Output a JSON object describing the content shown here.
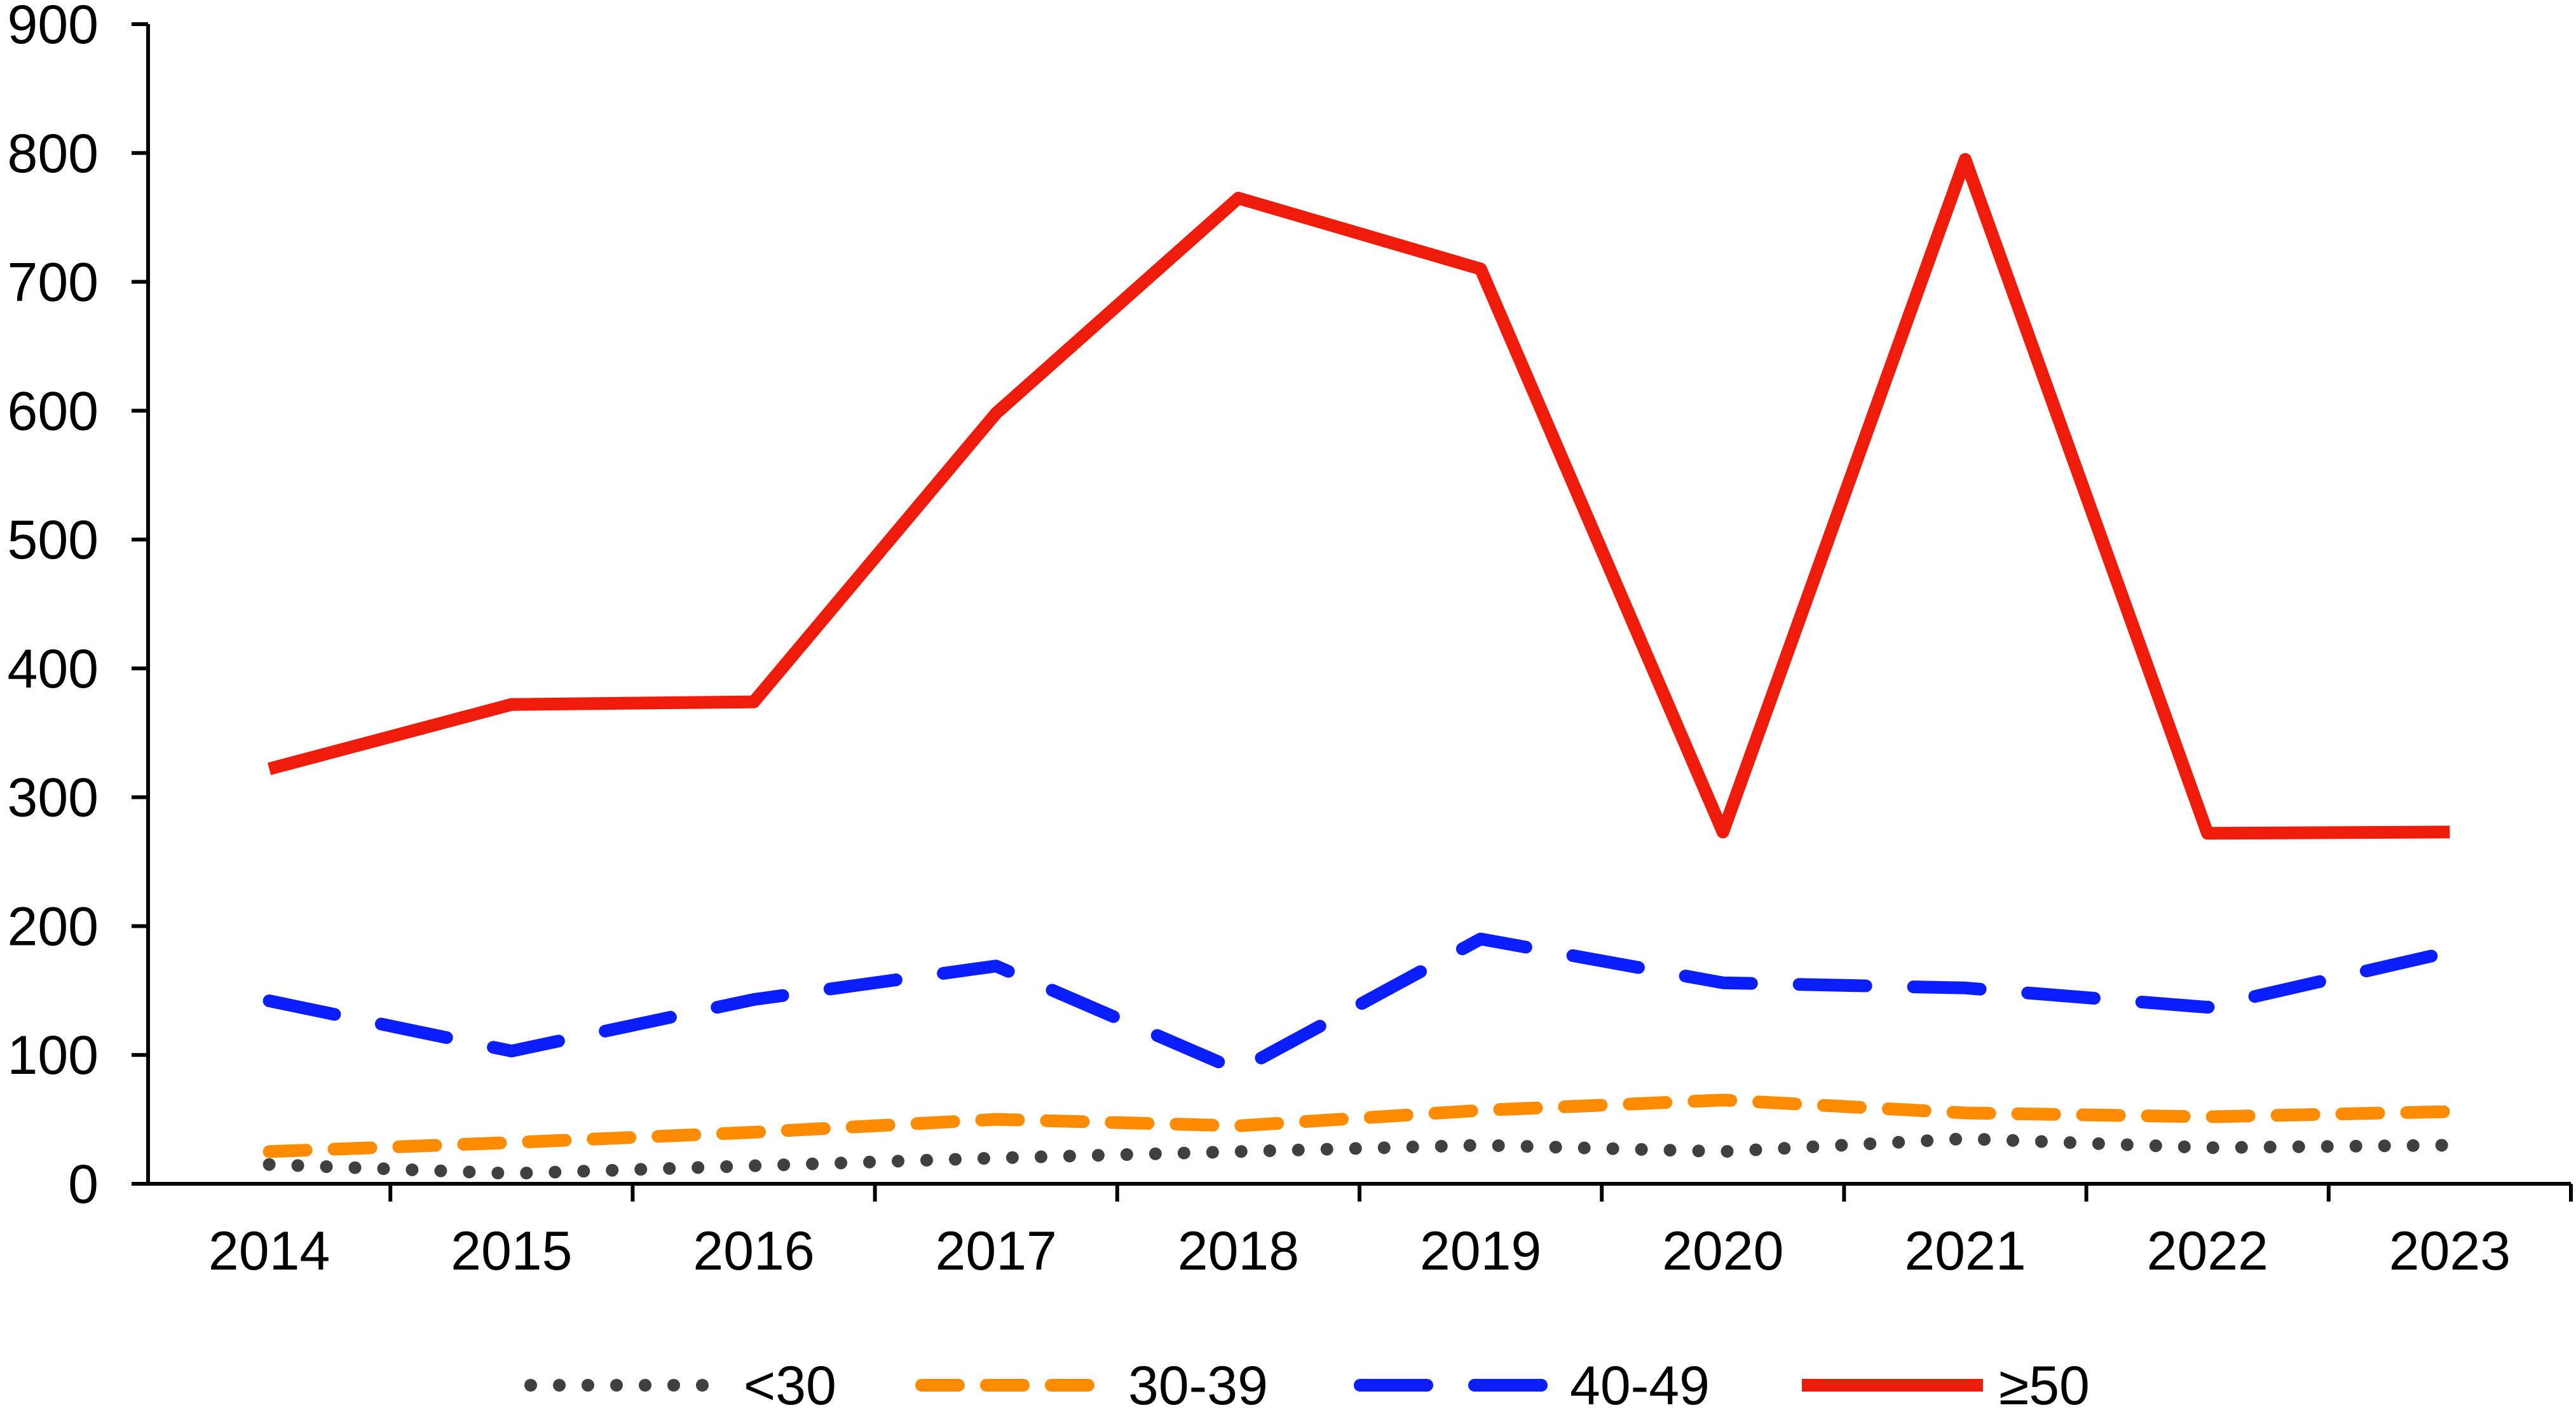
{
  "chart_data": {
    "type": "line",
    "title": "",
    "xlabel": "",
    "ylabel": "",
    "x": [
      "2014",
      "2015",
      "2016",
      "2017",
      "2018",
      "2019",
      "2020",
      "2021",
      "2022",
      "2023"
    ],
    "ylim": [
      0,
      900
    ],
    "yticks": [
      "0",
      "100",
      "200",
      "300",
      "400",
      "500",
      "600",
      "700",
      "800",
      "900"
    ],
    "grid": false,
    "legend_position": "bottom",
    "series": [
      {
        "name": "<30",
        "color": "#404040",
        "style": "dotted",
        "values": [
          15,
          8,
          14,
          20,
          25,
          30,
          25,
          35,
          28,
          30
        ]
      },
      {
        "name": "30-39",
        "color": "#FF8C00",
        "style": "dashed",
        "values": [
          25,
          32,
          40,
          50,
          45,
          57,
          65,
          55,
          52,
          56
        ]
      },
      {
        "name": "40-49",
        "color": "#0A1EFF",
        "style": "long-dash",
        "values": [
          142,
          103,
          143,
          169,
          88,
          190,
          156,
          152,
          137,
          180
        ]
      },
      {
        "name": "≥50",
        "color": "#EF1C0B",
        "style": "solid",
        "values": [
          322,
          372,
          374,
          598,
          765,
          710,
          273,
          795,
          272,
          273
        ]
      }
    ]
  }
}
